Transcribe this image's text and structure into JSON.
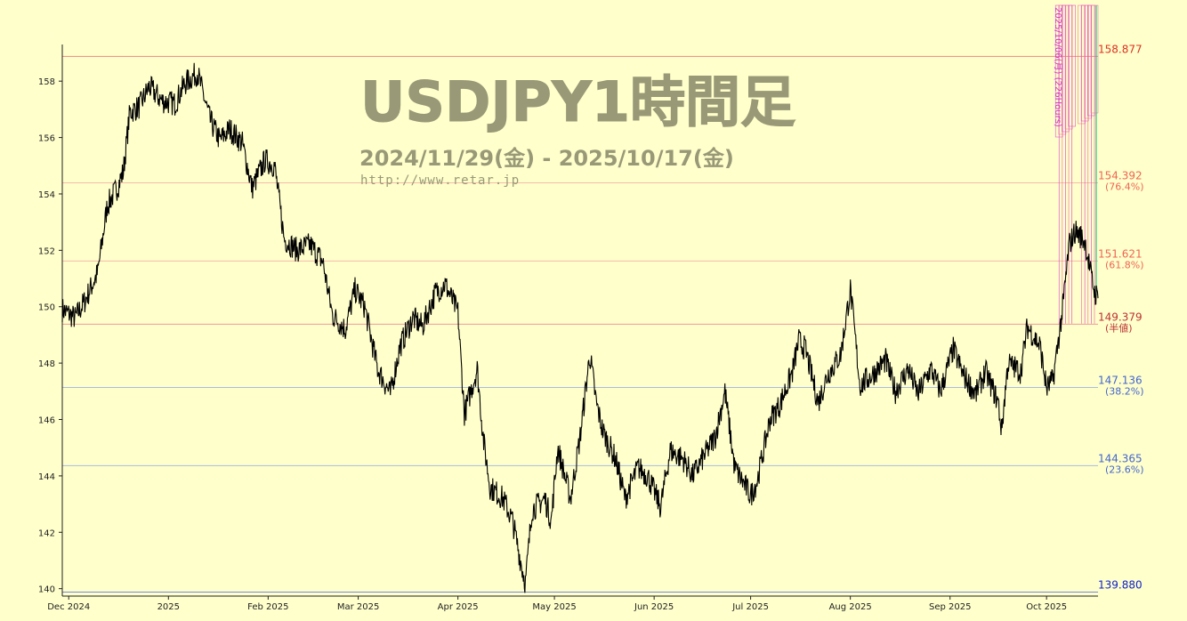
{
  "chart_data": {
    "type": "line",
    "title": "USDJPY1時間足",
    "subtitle": "2024/11/29(金) - 2025/10/17(金)",
    "url_text": "http://www.retar.jp",
    "ylim": [
      139.8,
      159.3
    ],
    "yticks": [
      140,
      142,
      144,
      146,
      148,
      150,
      152,
      154,
      156,
      158
    ],
    "xticks": [
      "Dec 2024",
      "2025",
      "Feb 2025",
      "Mar 2025",
      "Apr 2025",
      "May 2025",
      "Jun 2025",
      "Jul 2025",
      "Aug 2025",
      "Sep 2025",
      "Oct 2025"
    ],
    "xtick_dates": [
      "2024-12-01",
      "2025-01-01",
      "2025-02-01",
      "2025-03-01",
      "2025-04-01",
      "2025-05-01",
      "2025-06-01",
      "2025-07-01",
      "2025-08-01",
      "2025-09-01",
      "2025-10-01"
    ],
    "x_range": [
      "2024-11-29",
      "2025-10-17"
    ],
    "series": [
      {
        "color": "#000000",
        "points": [
          [
            "2024-11-29",
            149.9
          ],
          [
            "2024-12-03",
            149.6
          ],
          [
            "2024-12-06",
            150.2
          ],
          [
            "2024-12-10",
            151.2
          ],
          [
            "2024-12-13",
            153.6
          ],
          [
            "2024-12-16",
            154.2
          ],
          [
            "2024-12-18",
            154.8
          ],
          [
            "2024-12-20",
            156.9
          ],
          [
            "2024-12-23",
            157.1
          ],
          [
            "2024-12-26",
            157.8
          ],
          [
            "2024-12-30",
            157.3
          ],
          [
            "2025-01-03",
            157.2
          ],
          [
            "2025-01-06",
            157.9
          ],
          [
            "2025-01-10",
            158.3
          ],
          [
            "2025-01-14",
            156.6
          ],
          [
            "2025-01-17",
            155.9
          ],
          [
            "2025-01-20",
            156.3
          ],
          [
            "2025-01-24",
            155.8
          ],
          [
            "2025-01-27",
            154.2
          ],
          [
            "2025-01-31",
            155.2
          ],
          [
            "2025-02-03",
            155.0
          ],
          [
            "2025-02-06",
            152.4
          ],
          [
            "2025-02-10",
            152.0
          ],
          [
            "2025-02-14",
            152.2
          ],
          [
            "2025-02-18",
            151.6
          ],
          [
            "2025-02-21",
            149.7
          ],
          [
            "2025-02-25",
            149.2
          ],
          [
            "2025-02-28",
            150.6
          ],
          [
            "2025-03-03",
            150.0
          ],
          [
            "2025-03-07",
            147.8
          ],
          [
            "2025-03-11",
            146.9
          ],
          [
            "2025-03-14",
            148.6
          ],
          [
            "2025-03-18",
            149.6
          ],
          [
            "2025-03-21",
            149.3
          ],
          [
            "2025-03-25",
            150.5
          ],
          [
            "2025-03-28",
            150.8
          ],
          [
            "2025-04-01",
            149.8
          ],
          [
            "2025-04-03",
            146.2
          ],
          [
            "2025-04-07",
            147.8
          ],
          [
            "2025-04-09",
            145.2
          ],
          [
            "2025-04-11",
            143.6
          ],
          [
            "2025-04-15",
            143.2
          ],
          [
            "2025-04-18",
            142.4
          ],
          [
            "2025-04-21",
            140.7
          ],
          [
            "2025-04-22",
            140.2
          ],
          [
            "2025-04-24",
            142.8
          ],
          [
            "2025-04-28",
            143.2
          ],
          [
            "2025-04-30",
            142.4
          ],
          [
            "2025-05-02",
            145.0
          ],
          [
            "2025-05-06",
            143.2
          ],
          [
            "2025-05-09",
            145.4
          ],
          [
            "2025-05-12",
            148.3
          ],
          [
            "2025-05-14",
            146.6
          ],
          [
            "2025-05-16",
            145.6
          ],
          [
            "2025-05-20",
            144.6
          ],
          [
            "2025-05-23",
            143.2
          ],
          [
            "2025-05-27",
            144.3
          ],
          [
            "2025-05-30",
            144.0
          ],
          [
            "2025-06-03",
            142.9
          ],
          [
            "2025-06-06",
            144.9
          ],
          [
            "2025-06-10",
            144.6
          ],
          [
            "2025-06-13",
            144.0
          ],
          [
            "2025-06-17",
            144.8
          ],
          [
            "2025-06-20",
            145.4
          ],
          [
            "2025-06-23",
            147.0
          ],
          [
            "2025-06-26",
            144.3
          ],
          [
            "2025-07-01",
            143.3
          ],
          [
            "2025-07-03",
            143.8
          ],
          [
            "2025-07-07",
            146.0
          ],
          [
            "2025-07-10",
            146.5
          ],
          [
            "2025-07-14",
            147.7
          ],
          [
            "2025-07-16",
            148.8
          ],
          [
            "2025-07-18",
            148.5
          ],
          [
            "2025-07-22",
            146.6
          ],
          [
            "2025-07-25",
            147.6
          ],
          [
            "2025-07-29",
            148.3
          ],
          [
            "2025-08-01",
            150.6
          ],
          [
            "2025-08-04",
            147.2
          ],
          [
            "2025-08-07",
            147.5
          ],
          [
            "2025-08-12",
            148.1
          ],
          [
            "2025-08-15",
            147.0
          ],
          [
            "2025-08-19",
            147.8
          ],
          [
            "2025-08-22",
            146.9
          ],
          [
            "2025-08-26",
            147.8
          ],
          [
            "2025-08-29",
            147.0
          ],
          [
            "2025-09-02",
            148.5
          ],
          [
            "2025-09-05",
            147.6
          ],
          [
            "2025-09-09",
            146.9
          ],
          [
            "2025-09-12",
            147.7
          ],
          [
            "2025-09-16",
            146.6
          ],
          [
            "2025-09-17",
            145.6
          ],
          [
            "2025-09-19",
            148.0
          ],
          [
            "2025-09-23",
            147.7
          ],
          [
            "2025-09-25",
            149.3
          ],
          [
            "2025-09-29",
            148.6
          ],
          [
            "2025-10-01",
            147.1
          ],
          [
            "2025-10-03",
            147.4
          ],
          [
            "2025-10-06",
            149.9
          ],
          [
            "2025-10-08",
            152.2
          ],
          [
            "2025-10-10",
            152.7
          ],
          [
            "2025-10-13",
            152.3
          ],
          [
            "2025-10-15",
            151.0
          ],
          [
            "2025-10-16",
            150.5
          ],
          [
            "2025-10-17",
            150.3
          ]
        ]
      }
    ],
    "levels": [
      {
        "value": 158.877,
        "label": "158.877",
        "pct": "",
        "color": "#dd3322",
        "line": "#ee8888"
      },
      {
        "value": 154.392,
        "label": "154.392",
        "pct": "(76.4%)",
        "color": "#ee6655",
        "line": "#f4bbaa"
      },
      {
        "value": 151.621,
        "label": "151.621",
        "pct": "(61.8%)",
        "color": "#ee6655",
        "line": "#f4bbaa"
      },
      {
        "value": 149.379,
        "label": "149.379",
        "pct": "(半値)",
        "color": "#bb3333",
        "line": "#ee9999"
      },
      {
        "value": 147.136,
        "label": "147.136",
        "pct": "(38.2%)",
        "color": "#4466cc",
        "line": "#aabbdd"
      },
      {
        "value": 144.365,
        "label": "144.365",
        "pct": "(23.6%)",
        "color": "#4466cc",
        "line": "#aabbdd"
      },
      {
        "value": 139.88,
        "label": "139.880",
        "pct": "",
        "color": "#1122cc",
        "line": "#7788dd"
      }
    ],
    "vertical_annotation": "2025/10/06(月) (226Hours)",
    "grid": false
  }
}
